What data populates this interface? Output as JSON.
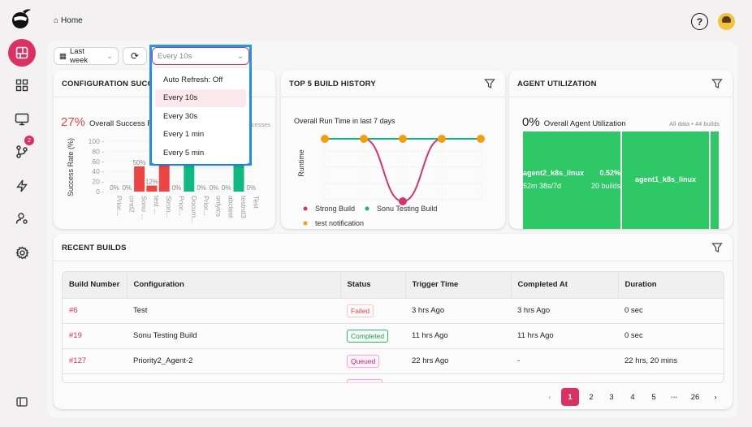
{
  "breadcrumb": {
    "home": "Home"
  },
  "sidebar": {
    "items": [
      {
        "name": "dashboard",
        "active": true
      },
      {
        "name": "widgets"
      },
      {
        "name": "monitor"
      },
      {
        "name": "branches",
        "badge": "2"
      },
      {
        "name": "lightning"
      },
      {
        "name": "user-settings"
      },
      {
        "name": "settings"
      }
    ]
  },
  "toolbar": {
    "date_range": "Last week",
    "refresh_select": "Every 10s"
  },
  "refresh_dropdown": {
    "options": [
      "Auto Refresh: Off",
      "Every 10s",
      "Every 30s",
      "Every 1 min",
      "Every 5 min"
    ],
    "selected": "Every 10s"
  },
  "config_card": {
    "title": "CONFIGURATION SUCCESS RATE",
    "rate": "27%",
    "rate_label": "Overall Success Rate",
    "right_note": "successes",
    "color_fail": "#ef4444",
    "color_ok": "#10b981"
  },
  "history_card": {
    "title": "TOP 5 BUILD HISTORY",
    "subtitle": "Overall Run Time in last 7 days",
    "legend": [
      "Strong Build",
      "Sonu Testing Build",
      "test notification"
    ]
  },
  "agent_card": {
    "title": "AGENT UTILIZATION",
    "rate": "0%",
    "rate_label": "Overall Agent Utilization",
    "note": "All data • 44 builds",
    "agents": [
      {
        "name": "agent2_k8s_linux",
        "pct": "0.52%",
        "time": "52m 38s/7d",
        "builds": "20 builds"
      },
      {
        "name": "agent1_k8s_linux"
      }
    ]
  },
  "chart_data": [
    {
      "type": "bar",
      "ylabel": "Success Rate (%)",
      "ylim": [
        0,
        100
      ],
      "yticks": [
        "0",
        "20",
        "40",
        "60",
        "80",
        "100"
      ],
      "categories": [
        "Prior...",
        "cmd2",
        "Sonu ...",
        "test ...",
        "Stron...",
        "Prior...",
        "Docum...",
        "Prior...",
        "onlyics",
        "abctest",
        "testnd3",
        "Test"
      ],
      "values": [
        0,
        0,
        50,
        12,
        100,
        0,
        100,
        0,
        0,
        0,
        100,
        0
      ],
      "labels": [
        "0%",
        "0%",
        "50%",
        "12%",
        "",
        "0%",
        "",
        "0%",
        "0%",
        "0%",
        "",
        "0%"
      ]
    },
    {
      "type": "line",
      "title": "Overall Run Time in last 7 days",
      "ylabel": "Runtime",
      "series": [
        {
          "name": "Strong Build",
          "color": "#d6336c",
          "values": [
            1,
            1,
            0,
            1,
            1
          ]
        },
        {
          "name": "Sonu Testing Build",
          "color": "#10b981",
          "values": [
            1,
            1,
            1,
            1,
            1
          ]
        },
        {
          "name": "test notification",
          "color": "#f59e0b",
          "values": [
            1,
            1,
            1,
            1,
            1
          ]
        }
      ]
    }
  ],
  "recent": {
    "title": "RECENT BUILDS",
    "columns": [
      "Build Number",
      "Configuration",
      "Status",
      "Trigger Time",
      "Completed At",
      "Duration"
    ],
    "rows": [
      {
        "num": "#6",
        "config": "Test",
        "status": "Failed",
        "trigger": "3 hrs Ago",
        "completed": "3 hrs Ago",
        "duration": "0 sec"
      },
      {
        "num": "#19",
        "config": "Sonu Testing Build",
        "status": "Completed",
        "trigger": "11 hrs Ago",
        "completed": "11 hrs Ago",
        "duration": "0 sec"
      },
      {
        "num": "#127",
        "config": "Priority2_Agent-2",
        "status": "Queued",
        "trigger": "22 hrs Ago",
        "completed": "-",
        "duration": "22 hrs, 20 mins"
      }
    ]
  },
  "pagination": {
    "pages": [
      "1",
      "2",
      "3",
      "4",
      "5",
      "•••",
      "26"
    ],
    "current": "1"
  }
}
